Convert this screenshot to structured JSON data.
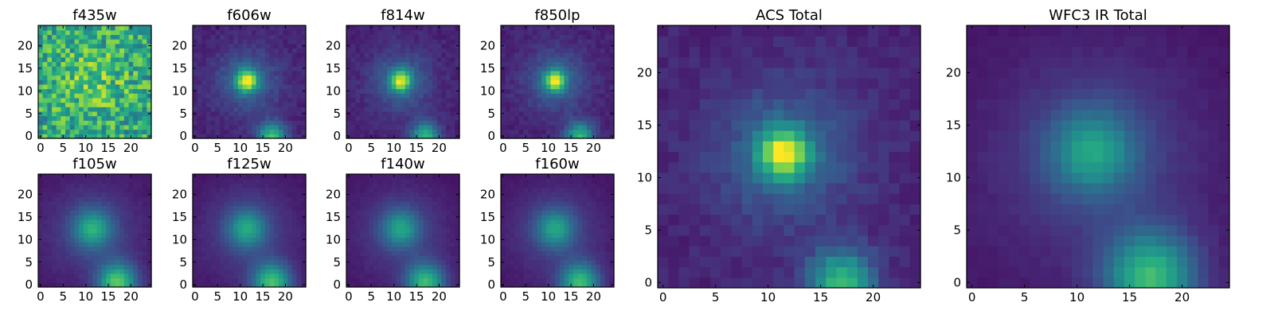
{
  "chart_data": [
    {
      "type": "heatmap",
      "title": "f435w",
      "x_ticks": [
        "0",
        "5",
        "10",
        "15",
        "20"
      ],
      "y_ticks": [
        "0",
        "5",
        "10",
        "15",
        "20"
      ],
      "xlim": [
        -0.5,
        24.5
      ],
      "ylim": [
        -0.5,
        24.5
      ],
      "map": "noisy",
      "peak": 0.45,
      "colormap": "viridis"
    },
    {
      "type": "heatmap",
      "title": "f606w",
      "x_ticks": [
        "0",
        "5",
        "10",
        "15",
        "20"
      ],
      "y_ticks": [
        "0",
        "5",
        "10",
        "15",
        "20"
      ],
      "xlim": [
        -0.5,
        24.5
      ],
      "ylim": [
        -0.5,
        24.5
      ],
      "map": "compact",
      "peak": 1.0,
      "colormap": "viridis"
    },
    {
      "type": "heatmap",
      "title": "f814w",
      "x_ticks": [
        "0",
        "5",
        "10",
        "15",
        "20"
      ],
      "y_ticks": [
        "0",
        "5",
        "10",
        "15",
        "20"
      ],
      "xlim": [
        -0.5,
        24.5
      ],
      "ylim": [
        -0.5,
        24.5
      ],
      "map": "compact",
      "peak": 1.0,
      "colormap": "viridis"
    },
    {
      "type": "heatmap",
      "title": "f850lp",
      "x_ticks": [
        "0",
        "5",
        "10",
        "15",
        "20"
      ],
      "y_ticks": [
        "0",
        "5",
        "10",
        "15",
        "20"
      ],
      "xlim": [
        -0.5,
        24.5
      ],
      "ylim": [
        -0.5,
        24.5
      ],
      "map": "compact",
      "peak": 1.0,
      "colormap": "viridis"
    },
    {
      "type": "heatmap",
      "title": "f105w",
      "x_ticks": [
        "0",
        "5",
        "10",
        "15",
        "20"
      ],
      "y_ticks": [
        "0",
        "5",
        "10",
        "15",
        "20"
      ],
      "xlim": [
        -0.5,
        24.5
      ],
      "ylim": [
        -0.5,
        24.5
      ],
      "map": "extended",
      "peak": 0.75,
      "colormap": "viridis"
    },
    {
      "type": "heatmap",
      "title": "f125w",
      "x_ticks": [
        "0",
        "5",
        "10",
        "15",
        "20"
      ],
      "y_ticks": [
        "0",
        "5",
        "10",
        "15",
        "20"
      ],
      "xlim": [
        -0.5,
        24.5
      ],
      "ylim": [
        -0.5,
        24.5
      ],
      "map": "extended",
      "peak": 0.72,
      "colormap": "viridis"
    },
    {
      "type": "heatmap",
      "title": "f140w",
      "x_ticks": [
        "0",
        "5",
        "10",
        "15",
        "20"
      ],
      "y_ticks": [
        "0",
        "5",
        "10",
        "15",
        "20"
      ],
      "xlim": [
        -0.5,
        24.5
      ],
      "ylim": [
        -0.5,
        24.5
      ],
      "map": "extended",
      "peak": 0.7,
      "colormap": "viridis"
    },
    {
      "type": "heatmap",
      "title": "f160w",
      "x_ticks": [
        "0",
        "5",
        "10",
        "15",
        "20"
      ],
      "y_ticks": [
        "0",
        "5",
        "10",
        "15",
        "20"
      ],
      "xlim": [
        -0.5,
        24.5
      ],
      "ylim": [
        -0.5,
        24.5
      ],
      "map": "extended",
      "peak": 0.7,
      "colormap": "viridis"
    },
    {
      "type": "heatmap",
      "title": "ACS Total",
      "x_ticks": [
        "0",
        "5",
        "10",
        "15",
        "20"
      ],
      "y_ticks": [
        "0",
        "5",
        "10",
        "15",
        "20"
      ],
      "xlim": [
        -0.5,
        24.5
      ],
      "ylim": [
        -0.5,
        24.5
      ],
      "map": "compact",
      "peak": 1.0,
      "colormap": "viridis"
    },
    {
      "type": "heatmap",
      "title": "WFC3 IR Total",
      "x_ticks": [
        "0",
        "5",
        "10",
        "15",
        "20"
      ],
      "y_ticks": [
        "0",
        "5",
        "10",
        "15",
        "20"
      ],
      "xlim": [
        -0.5,
        24.5
      ],
      "ylim": [
        -0.5,
        24.5
      ],
      "map": "extended",
      "peak": 0.7,
      "colormap": "viridis"
    }
  ]
}
